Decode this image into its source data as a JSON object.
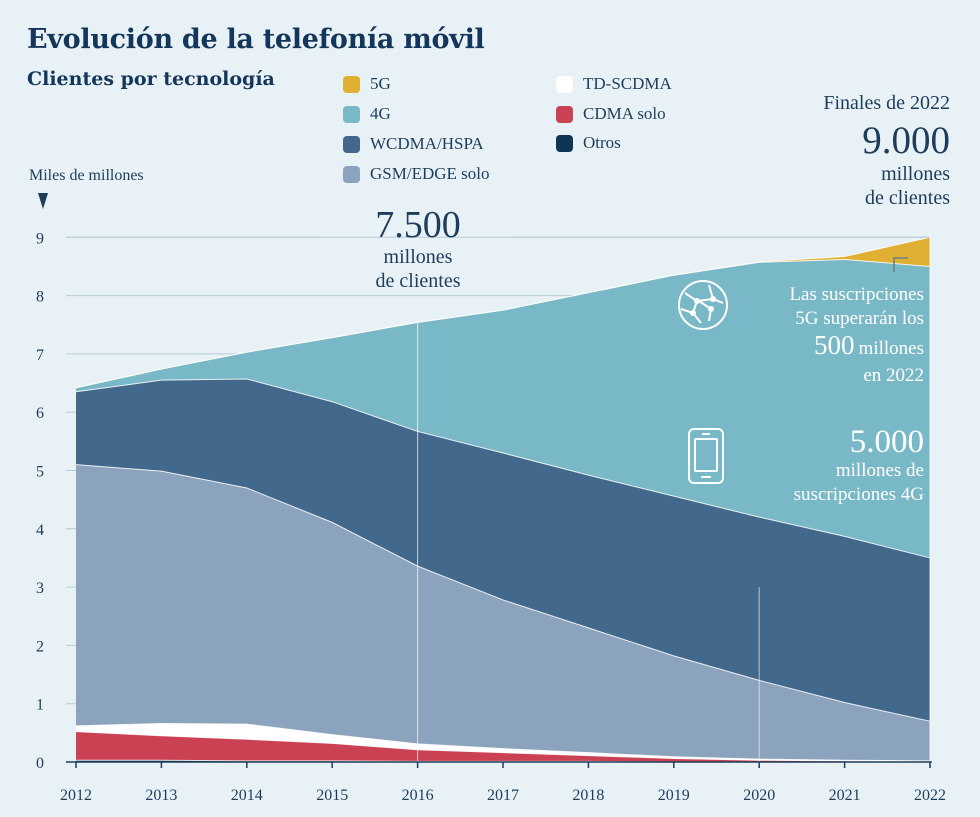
{
  "title": "Evolución de la telefonía móvil",
  "subtitle": "Clientes por tecnología",
  "unit_label": "Miles de millones",
  "legend": [
    {
      "label": "5G",
      "color": "#e0b033"
    },
    {
      "label": "4G",
      "color": "#79b8c6"
    },
    {
      "label": "WCDMA/HSPA",
      "color": "#42698c"
    },
    {
      "label": "GSM/EDGE solo",
      "color": "#8ca3bd"
    },
    {
      "label": "TD-SCDMA",
      "color": "#ffffff"
    },
    {
      "label": "CDMA solo",
      "color": "#c94152"
    },
    {
      "label": "Otros",
      "color": "#0f3554"
    }
  ],
  "annotations": {
    "mid_number": "7.500",
    "mid_line1": "millones",
    "mid_line2": "de clientes",
    "end_header": "Finales de 2022",
    "end_number": "9.000",
    "end_line1": "millones",
    "end_line2": "de clientes",
    "g5_line1": "Las suscripciones",
    "g5_line2": "5G superarán los",
    "g5_number": "500",
    "g5_word": "millones",
    "g5_line4": "en 2022",
    "g4_number": "5.000",
    "g4_line1": "millones de",
    "g4_line2": "suscripciones 4G"
  },
  "chart_data": {
    "type": "area",
    "stacked": true,
    "x": [
      "2012",
      "2013",
      "2014",
      "2015",
      "2016",
      "2017",
      "2018",
      "2019",
      "2020",
      "2021",
      "2022"
    ],
    "ylim": [
      0,
      9
    ],
    "yticks": [
      0,
      1,
      2,
      3,
      4,
      5,
      6,
      7,
      8,
      9
    ],
    "ylabel": "Miles de millones",
    "series": [
      {
        "name": "Otros",
        "color": "#0f3554",
        "values": [
          0.03,
          0.03,
          0.02,
          0.02,
          0.01,
          0.01,
          0.01,
          0.0,
          0.0,
          0.0,
          0.0
        ]
      },
      {
        "name": "CDMA solo",
        "color": "#c94152",
        "values": [
          0.49,
          0.42,
          0.37,
          0.3,
          0.2,
          0.15,
          0.1,
          0.06,
          0.03,
          0.02,
          0.01
        ]
      },
      {
        "name": "TD-SCDMA",
        "color": "#ffffff",
        "values": [
          0.1,
          0.21,
          0.26,
          0.15,
          0.1,
          0.07,
          0.05,
          0.03,
          0.02,
          0.01,
          0.01
        ]
      },
      {
        "name": "GSM/EDGE solo",
        "color": "#8ca3bd",
        "values": [
          4.48,
          4.33,
          4.05,
          3.64,
          3.05,
          2.55,
          2.14,
          1.73,
          1.35,
          0.99,
          0.68
        ]
      },
      {
        "name": "WCDMA/HSPA",
        "color": "#42698c",
        "values": [
          1.25,
          1.56,
          1.87,
          2.07,
          2.31,
          2.52,
          2.62,
          2.74,
          2.8,
          2.85,
          2.8
        ]
      },
      {
        "name": "4G",
        "color": "#79b8c6",
        "values": [
          0.07,
          0.19,
          0.46,
          1.1,
          1.87,
          2.45,
          3.13,
          3.79,
          4.37,
          4.75,
          5.0
        ]
      },
      {
        "name": "5G",
        "color": "#e0b033",
        "values": [
          0,
          0,
          0,
          0,
          0,
          0,
          0,
          0,
          0.01,
          0.05,
          0.5
        ]
      }
    ]
  }
}
